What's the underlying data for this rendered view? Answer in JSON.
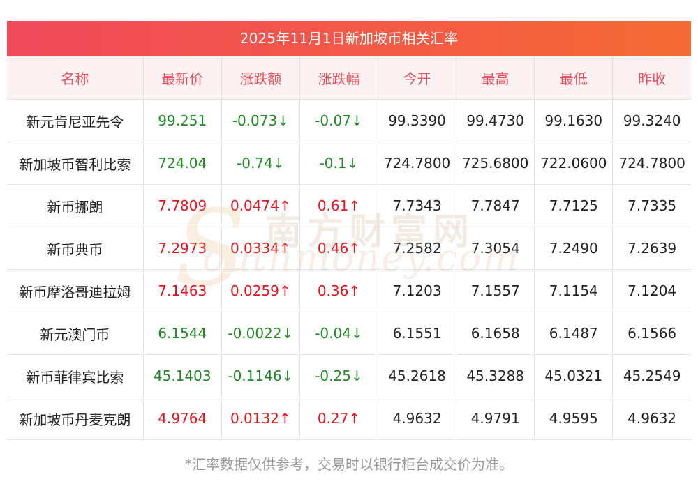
{
  "title": "2025年11月1日新加坡币相关汇率",
  "headers": [
    "名称",
    "最新价",
    "涨跌额",
    "涨跌幅",
    "今开",
    "最高",
    "最低",
    "昨收"
  ],
  "rows": [
    {
      "name": "新元肯尼亚先令",
      "latest": "99.251",
      "change": "-0.073↓",
      "change_pct": "-0.07↓",
      "open": "99.3390",
      "high": "99.4730",
      "low": "99.1630",
      "prev_close": "99.3240",
      "direction": "down"
    },
    {
      "name": "新加坡币智利比索",
      "latest": "724.04",
      "change": "-0.74↓",
      "change_pct": "-0.1↓",
      "open": "724.7800",
      "high": "725.6800",
      "low": "722.0600",
      "prev_close": "724.7800",
      "direction": "down"
    },
    {
      "name": "新币挪朗",
      "latest": "7.7809",
      "change": "0.0474↑",
      "change_pct": "0.61↑",
      "open": "7.7343",
      "high": "7.7847",
      "low": "7.7125",
      "prev_close": "7.7335",
      "direction": "up"
    },
    {
      "name": "新币典币",
      "latest": "7.2973",
      "change": "0.0334↑",
      "change_pct": "0.46↑",
      "open": "7.2582",
      "high": "7.3054",
      "low": "7.2490",
      "prev_close": "7.2639",
      "direction": "up"
    },
    {
      "name": "新币摩洛哥迪拉姆",
      "latest": "7.1463",
      "change": "0.0259↑",
      "change_pct": "0.36↑",
      "open": "7.1203",
      "high": "7.1557",
      "low": "7.1154",
      "prev_close": "7.1204",
      "direction": "up"
    },
    {
      "name": "新元澳门币",
      "latest": "6.1544",
      "change": "-0.0022↓",
      "change_pct": "-0.04↓",
      "open": "6.1551",
      "high": "6.1658",
      "low": "6.1487",
      "prev_close": "6.1566",
      "direction": "down"
    },
    {
      "name": "新币菲律宾比索",
      "latest": "45.1403",
      "change": "-0.1146↓",
      "change_pct": "-0.25↓",
      "open": "45.2618",
      "high": "45.3288",
      "low": "45.0321",
      "prev_close": "45.2549",
      "direction": "down"
    },
    {
      "name": "新加坡币丹麦克朗",
      "latest": "4.9764",
      "change": "0.0132↑",
      "change_pct": "0.27↑",
      "open": "4.9632",
      "high": "4.9791",
      "low": "4.9595",
      "prev_close": "4.9632",
      "direction": "up"
    }
  ],
  "watermark": {
    "cn": "南方财富网",
    "en": "outhmoney.com",
    "letter": "S"
  },
  "footnote": "*汇率数据仅供参考，交易时以银行柜台成交价为准。",
  "colors": {
    "up": "#e8141b",
    "down": "#1e8a23",
    "header_text": "#e8505b",
    "title_bg_start": "#f1495b",
    "title_bg_end": "#f56b34"
  }
}
